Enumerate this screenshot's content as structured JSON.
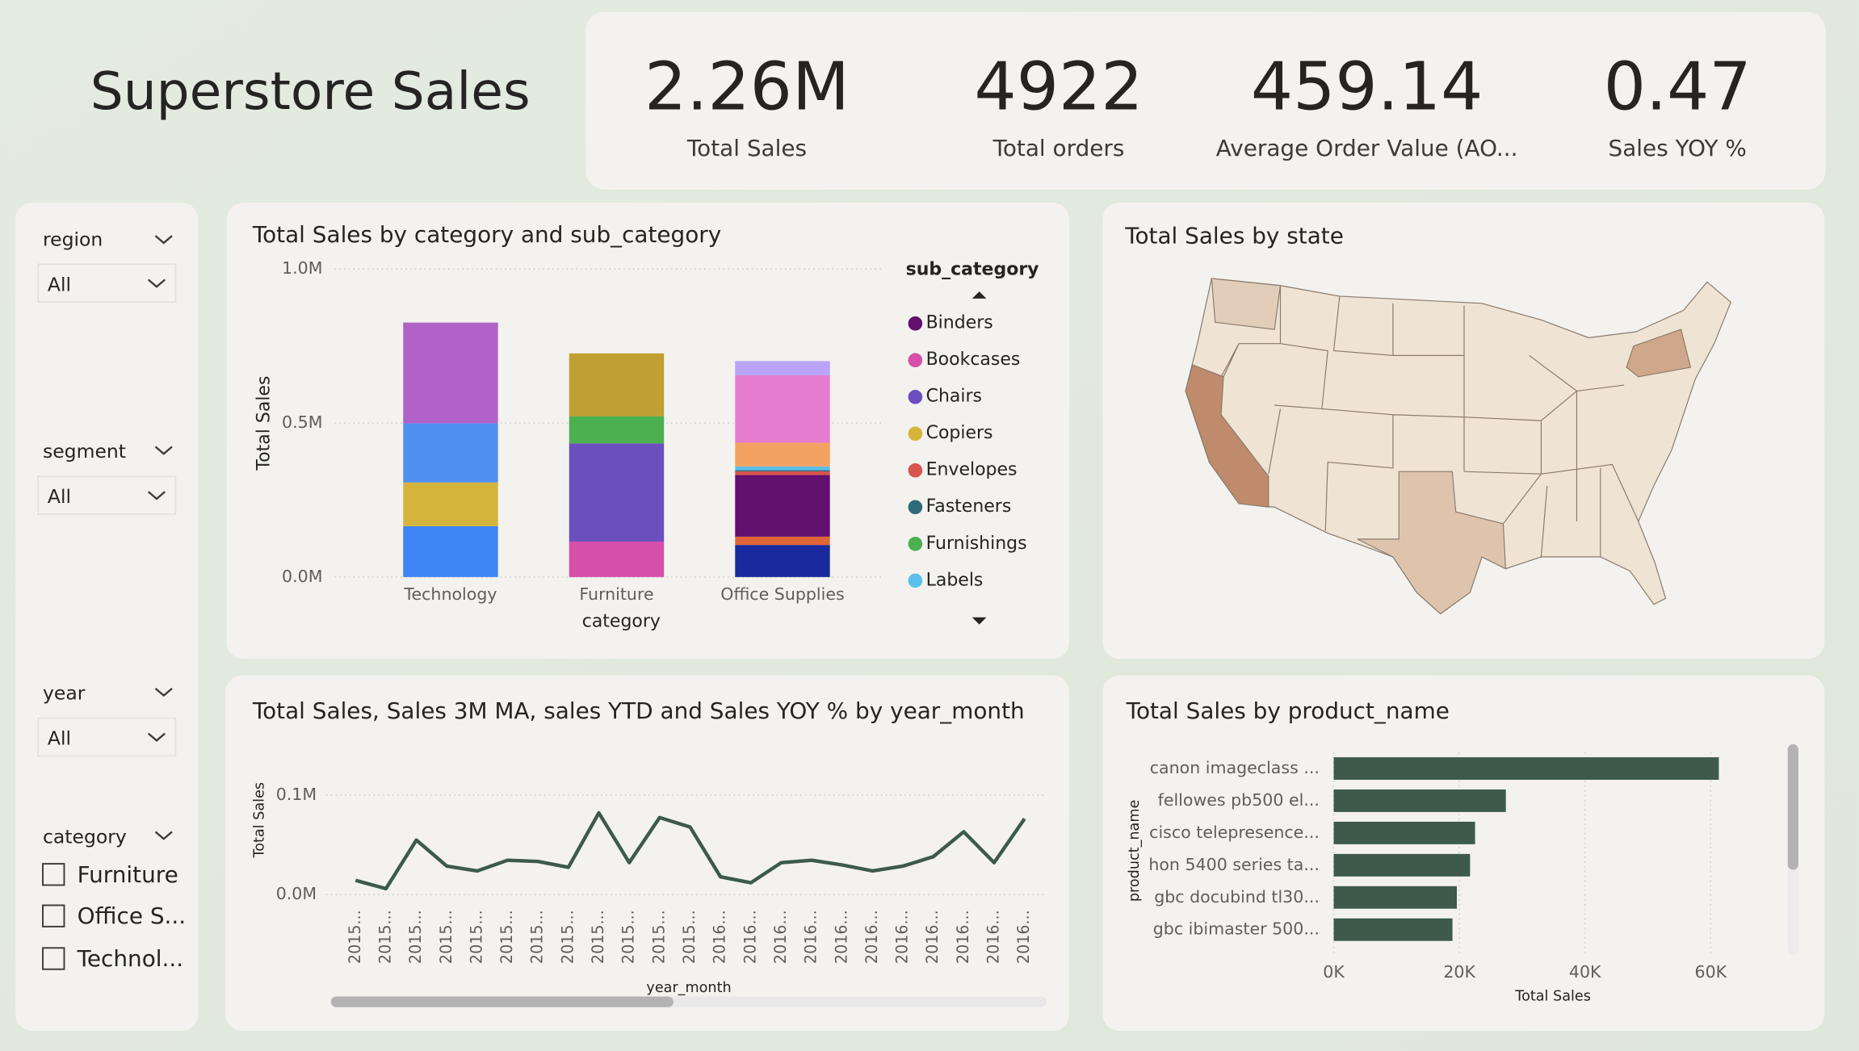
{
  "title": "Superstore Sales",
  "kpis": [
    {
      "value": "2.26M",
      "label": "Total Sales"
    },
    {
      "value": 4922,
      "label": "Total orders"
    },
    {
      "value": 459.14,
      "label": "Average Order Value (AO..."
    },
    {
      "value": 0.47,
      "label": "Sales YOY %"
    }
  ],
  "slicers": [
    {
      "title": "region",
      "value": "All"
    },
    {
      "title": "segment",
      "value": "All"
    },
    {
      "title": "year",
      "value": "All"
    },
    {
      "title": "category",
      "options": [
        "Furniture",
        "Office S...",
        "Technol..."
      ]
    }
  ],
  "chart_data": [
    {
      "type": "stacked_bar",
      "title": "Total Sales by category and sub_category",
      "x_label": "category",
      "y_label": "Total Sales",
      "legend_title": "sub_category",
      "categories": [
        "Technology",
        "Furniture",
        "Office Supplies"
      ],
      "ylim": [
        0,
        1000000
      ],
      "yticks": [
        {
          "value": 0,
          "label": "0.0M"
        },
        {
          "value": 500000,
          "label": "0.5M"
        },
        {
          "value": 1000000,
          "label": "1.0M"
        }
      ],
      "grid": true,
      "series": [
        {
          "name": null,
          "color": "#3d84f5",
          "values": [
            165000,
            null,
            null
          ]
        },
        {
          "name": "Copiers",
          "color": "#d4b43a",
          "values": [
            142000,
            null,
            null
          ]
        },
        {
          "name": null,
          "color": "#4f8ff0",
          "values": [
            192000,
            null,
            null
          ]
        },
        {
          "name": null,
          "color": "#b062c8",
          "values": [
            327000,
            null,
            null
          ]
        },
        {
          "name": "Bookcases",
          "color": "#d64fa8",
          "values": [
            null,
            115000,
            null
          ]
        },
        {
          "name": "Chairs",
          "color": "#6b4fbf",
          "values": [
            null,
            319000,
            null
          ]
        },
        {
          "name": "Furnishings",
          "color": "#4caf50",
          "values": [
            null,
            88000,
            null
          ]
        },
        {
          "name": null,
          "color": "#c0a032",
          "values": [
            null,
            204000,
            null
          ]
        },
        {
          "name": null,
          "color": "#1a2a9e",
          "values": [
            null,
            null,
            104000
          ]
        },
        {
          "name": null,
          "color": "#e0653a",
          "values": [
            null,
            null,
            27000
          ]
        },
        {
          "name": "Binders",
          "color": "#620f6e",
          "values": [
            null,
            null,
            200000
          ]
        },
        {
          "name": "Envelopes",
          "color": "#d9534f",
          "values": [
            null,
            null,
            12000
          ]
        },
        {
          "name": "Fasteners",
          "color": "#2e6b7a",
          "values": [
            null,
            null,
            4000
          ]
        },
        {
          "name": "Labels",
          "color": "#5bc0eb",
          "values": [
            null,
            null,
            12000
          ]
        },
        {
          "name": null,
          "color": "#f4a261",
          "values": [
            null,
            null,
            77000
          ]
        },
        {
          "name": null,
          "color": "#e57ccf",
          "values": [
            null,
            null,
            219000
          ]
        },
        {
          "name": null,
          "color": "#b9a4f7",
          "values": [
            null,
            null,
            46000
          ]
        }
      ]
    },
    {
      "type": "line",
      "title": "Total Sales, Sales 3M MA, sales YTD and Sales YOY % by year_month",
      "x_label": "year_month",
      "y_label": "Total Sales",
      "categories": [
        "2015...",
        "2015...",
        "2015...",
        "2015...",
        "2015...",
        "2015...",
        "2015...",
        "2015...",
        "2015...",
        "2015...",
        "2015...",
        "2015...",
        "2016...",
        "2016...",
        "2016...",
        "2016...",
        "2016...",
        "2016...",
        "2016...",
        "2016...",
        "2016...",
        "2016...",
        "2016..."
      ],
      "values": [
        14300,
        6000,
        54800,
        28600,
        23800,
        34500,
        33300,
        27400,
        82100,
        32100,
        77400,
        67900,
        17900,
        11900,
        32100,
        34500,
        29800,
        23800,
        28600,
        38100,
        63100,
        32100,
        76200
      ],
      "color": "#3d5a4a",
      "ylim": [
        0,
        110000
      ],
      "yticks": [
        {
          "value": 0,
          "label": "0.0M"
        },
        {
          "value": 100000,
          "label": "0.1M"
        }
      ],
      "grid": true
    },
    {
      "type": "hbar",
      "title": "Total Sales by product_name",
      "x_label": "Total Sales",
      "y_label": "product_name",
      "categories": [
        "canon imageclass ...",
        "fellowes pb500 el...",
        "cisco telepresence...",
        "hon 5400 series ta...",
        "gbc docubind tl30...",
        "gbc ibimaster 500..."
      ],
      "values": [
        61300,
        27400,
        22500,
        21700,
        19600,
        18900
      ],
      "color": "#3d5a4a",
      "xlim": [
        0,
        62000
      ],
      "xticks": [
        {
          "value": 0,
          "label": "0K"
        },
        {
          "value": 20000,
          "label": "20K"
        },
        {
          "value": 40000,
          "label": "40K"
        },
        {
          "value": 60000,
          "label": "60K"
        }
      ],
      "grid": true
    },
    {
      "type": "map",
      "title": "Total Sales by state"
    }
  ]
}
